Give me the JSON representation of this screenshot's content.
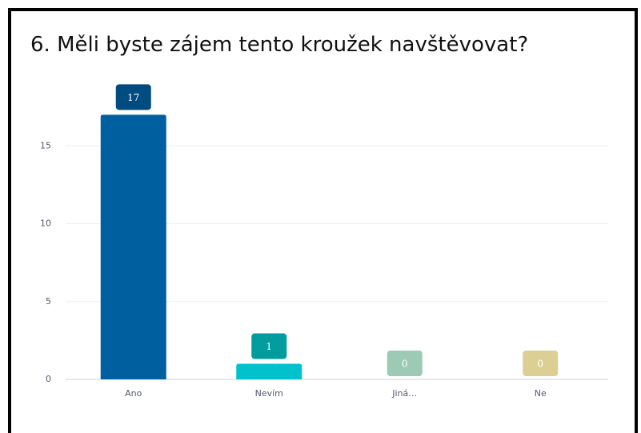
{
  "chart_data": {
    "type": "bar",
    "title": "6. Měli byste zájem tento kroužek navštěvovat?",
    "categories": [
      "Ano",
      "Nevím",
      "Jiná…",
      "Ne"
    ],
    "values": [
      17,
      1,
      0,
      0
    ],
    "colors": [
      "#005f9e",
      "#00c1cc",
      "#9ccbb7",
      "#ddd095"
    ],
    "label_colors": [
      "#004c80",
      "#009c9e",
      "#9ccab5",
      "#dccf94"
    ],
    "ylim": [
      0,
      20
    ],
    "yticks": [
      0,
      5,
      10,
      15
    ],
    "grid": true
  }
}
